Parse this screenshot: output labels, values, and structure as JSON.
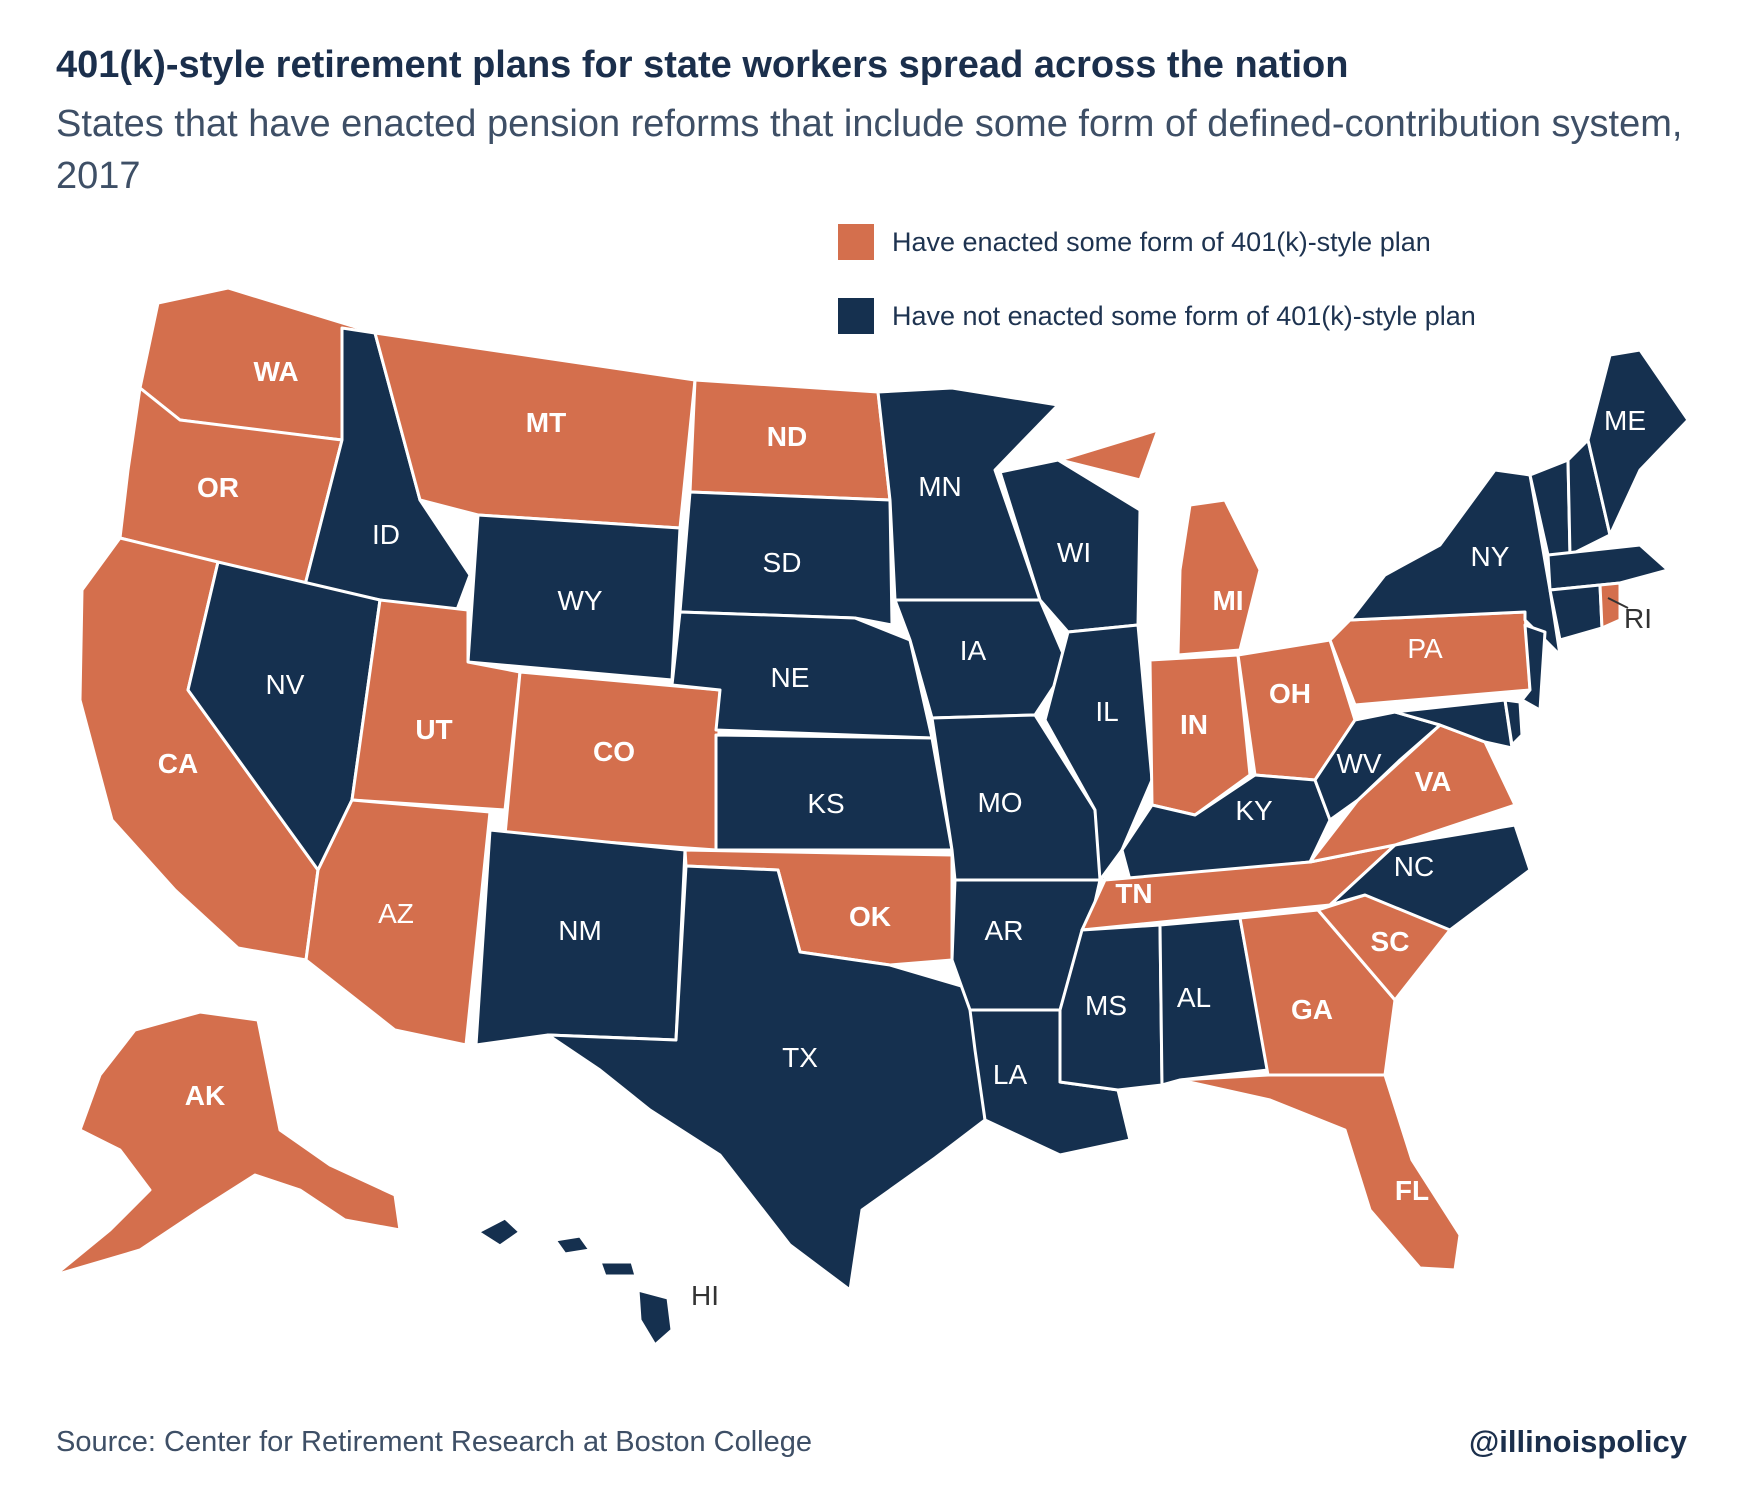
{
  "title": "401(k)-style retirement plans for state workers spread across the nation",
  "subtitle": "States that have enacted pension reforms that include some form of defined-contribution system, 2017",
  "colors": {
    "enacted": "#d46f4d",
    "not_enacted": "#15304f",
    "border": "#ffffff"
  },
  "legend": {
    "enacted": "Have enacted some form of 401(k)-style plan",
    "not_enacted": "Have not enacted some form of 401(k)-style plan"
  },
  "states": {
    "WA": "enacted",
    "OR": "enacted",
    "CA": "enacted",
    "ID": "not_enacted",
    "NV": "not_enacted",
    "MT": "enacted",
    "WY": "not_enacted",
    "UT": "enacted",
    "AZ": "enacted",
    "CO": "enacted",
    "NM": "not_enacted",
    "ND": "enacted",
    "SD": "not_enacted",
    "NE": "not_enacted",
    "KS": "not_enacted",
    "OK": "enacted",
    "TX": "not_enacted",
    "MN": "not_enacted",
    "IA": "not_enacted",
    "MO": "not_enacted",
    "AR": "not_enacted",
    "LA": "not_enacted",
    "WI": "not_enacted",
    "IL": "not_enacted",
    "MI": "enacted",
    "IN": "enacted",
    "OH": "enacted",
    "KY": "not_enacted",
    "TN": "enacted",
    "MS": "not_enacted",
    "AL": "not_enacted",
    "GA": "enacted",
    "FL": "enacted",
    "SC": "enacted",
    "NC": "not_enacted",
    "VA": "enacted",
    "WV": "not_enacted",
    "PA": "enacted",
    "NY": "not_enacted",
    "NJ": "not_enacted",
    "DE": "not_enacted",
    "MD": "not_enacted",
    "CT": "not_enacted",
    "RI": "enacted",
    "MA": "not_enacted",
    "VT": "not_enacted",
    "NH": "not_enacted",
    "ME": "not_enacted",
    "AK": "enacted",
    "HI": "not_enacted"
  },
  "labels": {
    "WA": "WA",
    "OR": "OR",
    "CA": "CA",
    "ID": "ID",
    "NV": "NV",
    "MT": "MT",
    "WY": "WY",
    "UT": "UT",
    "AZ": "AZ",
    "CO": "CO",
    "NM": "NM",
    "ND": "ND",
    "SD": "SD",
    "NE": "NE",
    "KS": "KS",
    "OK": "OK",
    "TX": "TX",
    "MN": "MN",
    "IA": "IA",
    "MO": "MO",
    "AR": "AR",
    "LA": "LA",
    "WI": "WI",
    "IL": "IL",
    "MI": "MI",
    "IN": "IN",
    "OH": "OH",
    "KY": "KY",
    "TN": "TN",
    "MS": "MS",
    "AL": "AL",
    "GA": "GA",
    "FL": "FL",
    "SC": "SC",
    "NC": "NC",
    "VA": "VA",
    "WV": "WV",
    "PA": "PA",
    "NY": "NY",
    "RI": "RI",
    "ME": "ME",
    "AK": "AK",
    "HI": "HI"
  },
  "footer": {
    "source": "Source: Center for Retirement Research at Boston College",
    "handle": "@illinoispolicy"
  }
}
